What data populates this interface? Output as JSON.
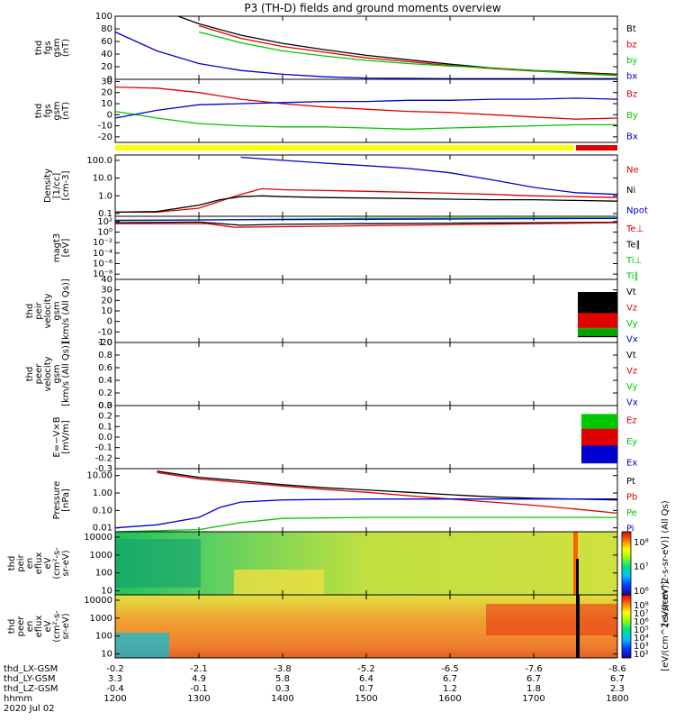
{
  "title": "P3 (TH-D) fields and ground moments overview",
  "colors": {
    "black": "#000000",
    "red": "#e00000",
    "green": "#00c800",
    "blue": "#0000d0",
    "yellow": "#ffff00"
  },
  "panels": [
    {
      "id": "fgs-mag",
      "ylabel": [
        "thd",
        "fgs",
        "gsm",
        "(nT)"
      ],
      "yscale": "linear",
      "ylim": [
        0,
        100
      ],
      "ticks": [
        "0",
        "20",
        "40",
        "60",
        "80",
        "100"
      ],
      "tickvals": [
        0,
        20,
        40,
        60,
        80,
        100
      ],
      "legend": [
        {
          "t": "Bt",
          "c": "black"
        },
        {
          "t": "bz",
          "c": "red"
        },
        {
          "t": "by",
          "c": "green"
        },
        {
          "t": "bx",
          "c": "blue"
        }
      ]
    },
    {
      "id": "fgs-gse",
      "ylabel": [
        "thd",
        "fgs",
        "gsm",
        "(nT)"
      ],
      "yscale": "linear",
      "ylim": [
        -25,
        32
      ],
      "ticks": [
        "-20",
        "-10",
        "0",
        "10",
        "20",
        "30"
      ],
      "tickvals": [
        -20,
        -10,
        0,
        10,
        20,
        30
      ],
      "legend": [
        {
          "t": "Bz",
          "c": "red"
        },
        {
          "t": "By",
          "c": "green"
        },
        {
          "t": "Bx",
          "c": "blue"
        }
      ]
    },
    {
      "id": "density",
      "ylabel": [
        "Density",
        "[1/cc]",
        "[cm-3]"
      ],
      "yscale": "log",
      "ylim": [
        0.07,
        200
      ],
      "ticks": [
        "0.1",
        "1.0",
        "10.0",
        "100.0"
      ],
      "tickvals": [
        0.1,
        1,
        10,
        100
      ],
      "legend": [
        {
          "t": "Ne",
          "c": "red"
        },
        {
          "t": "Ni",
          "c": "black"
        },
        {
          "t": "Npot",
          "c": "blue"
        }
      ]
    },
    {
      "id": "temp",
      "ylabel": [
        "magt3",
        "[eV]"
      ],
      "yscale": "log",
      "ylim": [
        1e-09,
        1000.0
      ],
      "ticks": [
        "10⁻⁸",
        "10⁻⁶",
        "10⁻⁴",
        "10⁻²",
        "10⁰",
        "10²"
      ],
      "tickvals": [
        1e-08,
        1e-06,
        0.0001,
        0.01,
        1,
        100
      ],
      "legend": [
        {
          "t": "Te⊥",
          "c": "red"
        },
        {
          "t": "Te∥",
          "c": "black"
        },
        {
          "t": "Ti⊥",
          "c": "green"
        },
        {
          "t": "Ti∥",
          "c": "green"
        }
      ]
    },
    {
      "id": "peir-vel",
      "ylabel": [
        "thd",
        "peir",
        "velocity",
        "gsm",
        "[km/s (All Qs)]"
      ],
      "yscale": "linear",
      "ylim": [
        -20,
        40
      ],
      "ticks": [
        "-20",
        "-10",
        "0",
        "10",
        "20",
        "30",
        "40"
      ],
      "tickvals": [
        -20,
        -10,
        0,
        10,
        20,
        30,
        40
      ],
      "legend": [
        {
          "t": "Vt",
          "c": "black"
        },
        {
          "t": "Vz",
          "c": "red"
        },
        {
          "t": "Vy",
          "c": "green"
        },
        {
          "t": "Vx",
          "c": "blue"
        }
      ]
    },
    {
      "id": "peer-vel",
      "ylabel": [
        "thd",
        "peer",
        "velocity",
        "gsm",
        "[km/s (All Qs)]"
      ],
      "yscale": "linear",
      "ylim": [
        0,
        1
      ],
      "ticks": [
        "0.0",
        "0.2",
        "0.4",
        "0.6",
        "0.8",
        "1.0"
      ],
      "tickvals": [
        0,
        0.2,
        0.4,
        0.6,
        0.8,
        1
      ],
      "legend": [
        {
          "t": "Vt",
          "c": "black"
        },
        {
          "t": "Vz",
          "c": "red"
        },
        {
          "t": "Vy",
          "c": "green"
        },
        {
          "t": "Vx",
          "c": "blue"
        }
      ]
    },
    {
      "id": "efield",
      "ylabel": [
        "E=−V×B",
        "[mV/m]"
      ],
      "yscale": "linear",
      "ylim": [
        -0.3,
        0.3
      ],
      "ticks": [
        "-0.3",
        "-0.2",
        "-0.1",
        "0.0",
        "0.1",
        "0.2",
        "0.3"
      ],
      "tickvals": [
        -0.3,
        -0.2,
        -0.1,
        0,
        0.1,
        0.2,
        0.3
      ],
      "legend": [
        {
          "t": "Ez",
          "c": "red"
        },
        {
          "t": "Ey",
          "c": "green"
        },
        {
          "t": "Ex",
          "c": "blue"
        }
      ]
    },
    {
      "id": "pressure",
      "ylabel": [
        "Pressure",
        "[nPa]"
      ],
      "yscale": "log",
      "ylim": [
        0.006,
        25
      ],
      "ticks": [
        "0.01",
        "0.10",
        "1.00",
        "10.00"
      ],
      "tickvals": [
        0.01,
        0.1,
        1,
        10
      ],
      "legend": [
        {
          "t": "Pt",
          "c": "black"
        },
        {
          "t": "Pb",
          "c": "red"
        },
        {
          "t": "Pe",
          "c": "green"
        },
        {
          "t": "Pi",
          "c": "blue"
        }
      ]
    },
    {
      "id": "peir-spec",
      "ylabel": [
        "thd",
        "peir",
        "en",
        "eflux",
        "eV",
        "(cm²-s-",
        "sr-eV)"
      ],
      "yscale": "log",
      "ylim": [
        6,
        20000
      ],
      "ticks": [
        "10",
        "100",
        "1000",
        "10000"
      ],
      "tickvals": [
        10,
        100,
        1000,
        10000
      ],
      "legend": []
    },
    {
      "id": "peer-spec",
      "ylabel": [
        "thd",
        "peer",
        "en",
        "eflux",
        "eV",
        "(cm²-s-",
        "sr-eV)"
      ],
      "yscale": "log",
      "ylim": [
        6,
        20000
      ],
      "ticks": [
        "10",
        "100",
        "1000",
        "10000"
      ],
      "tickvals": [
        10,
        100,
        1000,
        10000
      ],
      "legend": []
    }
  ],
  "colorbars": [
    {
      "label": "[eV/(cm^2-s-sr-eV)] (All Qs)",
      "ticks": [
        "10⁸",
        "10⁷",
        "10⁶"
      ]
    },
    {
      "label": "[eV/(cm^2-s-sr-eV)]",
      "ticks": [
        "10⁸",
        "10⁷",
        "10⁶",
        "10⁵",
        "10⁴",
        "10³",
        "10²"
      ]
    }
  ],
  "xaxis": {
    "rows": [
      {
        "label": "thd_LX-GSM",
        "values": [
          "-0.2",
          "-2.1",
          "-3.8",
          "-5.2",
          "-6.5",
          "-7.6",
          "-8.6"
        ]
      },
      {
        "label": "thd_LY-GSM",
        "values": [
          "3.3",
          "4.9",
          "5.8",
          "6.4",
          "6.7",
          "6.7",
          "6.7"
        ]
      },
      {
        "label": "thd_LZ-GSM",
        "values": [
          "-0.4",
          "-0.1",
          "0.3",
          "0.7",
          "1.2",
          "1.8",
          "2.3"
        ]
      },
      {
        "label": "hhmm",
        "values": [
          "1200",
          "1300",
          "1400",
          "1500",
          "1600",
          "1700",
          "1800"
        ]
      }
    ],
    "date": "2020 Jul 02",
    "xlim": [
      1200,
      1800
    ]
  },
  "chart_data": {
    "type": "line",
    "title": "P3 (TH-D) fields and ground moments overview",
    "x_units": "hhmm UT",
    "xlim": [
      "1200",
      "1800"
    ],
    "series": [
      {
        "panel": "fgs-mag",
        "name": "Bt",
        "x": [
          "1245",
          "1300",
          "1330",
          "1400",
          "1430",
          "1500",
          "1530",
          "1600",
          "1630",
          "1700",
          "1730",
          "1800"
        ],
        "values": [
          100,
          88,
          70,
          57,
          47,
          38,
          31,
          24,
          18,
          14,
          11,
          8
        ]
      },
      {
        "panel": "fgs-mag",
        "name": "bz",
        "x": [
          "1300",
          "1330",
          "1400",
          "1430",
          "1500",
          "1530",
          "1600",
          "1630",
          "1700",
          "1730",
          "1800"
        ],
        "values": [
          85,
          65,
          52,
          43,
          34,
          28,
          22,
          17,
          13,
          10,
          7
        ]
      },
      {
        "panel": "fgs-mag",
        "name": "by",
        "x": [
          "1300",
          "1330",
          "1400",
          "1430",
          "1500",
          "1530",
          "1600",
          "1630",
          "1700",
          "1730",
          "1800"
        ],
        "values": [
          75,
          58,
          45,
          37,
          30,
          25,
          21,
          18,
          14,
          9,
          6
        ]
      },
      {
        "panel": "fgs-mag",
        "name": "bx",
        "x": [
          "1200",
          "1230",
          "1300",
          "1330",
          "1400",
          "1430",
          "1500",
          "1600",
          "1700",
          "1800"
        ],
        "values": [
          75,
          45,
          25,
          14,
          8,
          4,
          2,
          1,
          1,
          1
        ]
      },
      {
        "panel": "fgs-gse",
        "name": "Bz",
        "x": [
          "1200",
          "1230",
          "1300",
          "1330",
          "1400",
          "1430",
          "1500",
          "1530",
          "1600",
          "1630",
          "1700",
          "1730",
          "1800"
        ],
        "values": [
          25,
          24,
          20,
          14,
          10,
          7,
          5,
          3,
          2,
          0,
          -2,
          -4,
          -3
        ]
      },
      {
        "panel": "fgs-gse",
        "name": "By",
        "x": [
          "1200",
          "1230",
          "1300",
          "1330",
          "1400",
          "1430",
          "1500",
          "1530",
          "1600",
          "1630",
          "1700",
          "1730",
          "1800"
        ],
        "values": [
          3,
          -3,
          -8,
          -10,
          -11,
          -11,
          -12,
          -13,
          -12,
          -11,
          -10,
          -9,
          -9
        ]
      },
      {
        "panel": "fgs-gse",
        "name": "Bx",
        "x": [
          "1200",
          "1230",
          "1300",
          "1330",
          "1400",
          "1430",
          "1500",
          "1530",
          "1600",
          "1630",
          "1700",
          "1730",
          "1800"
        ],
        "values": [
          -3,
          4,
          9,
          10,
          11,
          12,
          12,
          13,
          13,
          14,
          14,
          15,
          14
        ]
      },
      {
        "panel": "density",
        "name": "Npot",
        "x": [
          "1330",
          "1400",
          "1430",
          "1500",
          "1530",
          "1600",
          "1630",
          "1700",
          "1730",
          "1800"
        ],
        "values": [
          150,
          100,
          70,
          50,
          35,
          20,
          8,
          3,
          1.5,
          1.2
        ]
      },
      {
        "panel": "density",
        "name": "Ne",
        "x": [
          "1200",
          "1230",
          "1300",
          "1315",
          "1330",
          "1345",
          "1400",
          "1430",
          "1500",
          "1530",
          "1600",
          "1630",
          "1700",
          "1730",
          "1800"
        ],
        "values": [
          0.12,
          0.12,
          0.2,
          0.5,
          1.2,
          2.5,
          2.2,
          2.0,
          1.8,
          1.6,
          1.4,
          1.2,
          1.0,
          0.9,
          0.8
        ]
      },
      {
        "panel": "density",
        "name": "Ni",
        "x": [
          "1200",
          "1230",
          "1300",
          "1315",
          "1330",
          "1345",
          "1400",
          "1430",
          "1500",
          "1530",
          "1600",
          "1630",
          "1700",
          "1730",
          "1800"
        ],
        "values": [
          0.12,
          0.13,
          0.3,
          0.6,
          0.9,
          1.0,
          0.9,
          0.8,
          0.75,
          0.7,
          0.65,
          0.6,
          0.6,
          0.55,
          0.5
        ]
      },
      {
        "panel": "temp",
        "name": "Te∥",
        "x": [
          "1200",
          "1300",
          "1330",
          "1400",
          "1500",
          "1600",
          "1700",
          "1800"
        ],
        "values": [
          60,
          80,
          20,
          30,
          40,
          50,
          60,
          70
        ]
      },
      {
        "panel": "temp",
        "name": "Ti⊥",
        "x": [
          "1200",
          "1300",
          "1400",
          "1500",
          "1600",
          "1700",
          "1800"
        ],
        "values": [
          150,
          200,
          300,
          400,
          450,
          500,
          500
        ]
      },
      {
        "panel": "peir-vel",
        "name": "Vt",
        "x": [
          "1745",
          "1800"
        ],
        "values": [
          10,
          15
        ]
      },
      {
        "panel": "efield",
        "name": "Ez",
        "x": [
          "1745",
          "1800"
        ],
        "values": [
          0.0,
          0.0
        ]
      },
      {
        "panel": "pressure",
        "name": "Pt",
        "x": [
          "1230",
          "1300",
          "1330",
          "1400",
          "1430",
          "1500",
          "1530",
          "1600",
          "1630",
          "1700",
          "1730",
          "1800"
        ],
        "values": [
          18,
          8,
          5,
          3,
          2,
          1.5,
          1.1,
          0.8,
          0.6,
          0.5,
          0.45,
          0.4
        ]
      },
      {
        "panel": "pressure",
        "name": "Pb",
        "x": [
          "1230",
          "1300",
          "1330",
          "1400",
          "1430",
          "1500",
          "1530",
          "1600",
          "1630",
          "1700",
          "1730",
          "1800"
        ],
        "values": [
          15,
          6.5,
          4,
          2.5,
          1.6,
          1.1,
          0.7,
          0.45,
          0.3,
          0.2,
          0.12,
          0.07
        ]
      },
      {
        "panel": "pressure",
        "name": "Pi",
        "x": [
          "1200",
          "1230",
          "1300",
          "1315",
          "1330",
          "1400",
          "1500",
          "1600",
          "1700",
          "1800"
        ],
        "values": [
          0.01,
          0.015,
          0.04,
          0.15,
          0.3,
          0.4,
          0.45,
          0.45,
          0.45,
          0.45
        ]
      },
      {
        "panel": "pressure",
        "name": "Pe",
        "x": [
          "1200",
          "1300",
          "1330",
          "1400",
          "1500",
          "1600",
          "1700",
          "1800"
        ],
        "values": [
          0.006,
          0.008,
          0.02,
          0.035,
          0.04,
          0.04,
          0.04,
          0.04
        ]
      }
    ]
  }
}
